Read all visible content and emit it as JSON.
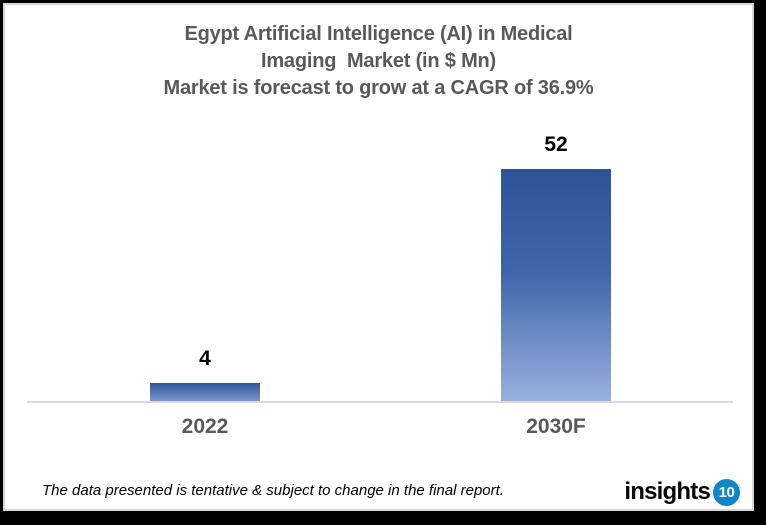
{
  "chart_data": {
    "type": "bar",
    "title_lines": [
      "Egypt Artificial Intelligence (AI) in Medical",
      "Imaging  Market (in $ Mn)",
      "Market is forecast to grow at a CAGR of 36.9%"
    ],
    "categories": [
      "2022",
      "2030F"
    ],
    "values": [
      4,
      52
    ],
    "ylim": [
      0,
      57
    ],
    "grid": false,
    "legend": "none",
    "title_color": "#595959",
    "category_label_color": "#595959",
    "value_label_color": "#000000",
    "axis_line_color": "#d9d9d9",
    "bar_gradient_top": "#2e5496",
    "bar_gradient_bottom": "#9ab0de"
  },
  "footer": {
    "note": "The data presented is tentative & subject to change in the final report.",
    "logo_text": "insights",
    "logo_badge": "10",
    "logo_badge_color": "#1086c8"
  }
}
